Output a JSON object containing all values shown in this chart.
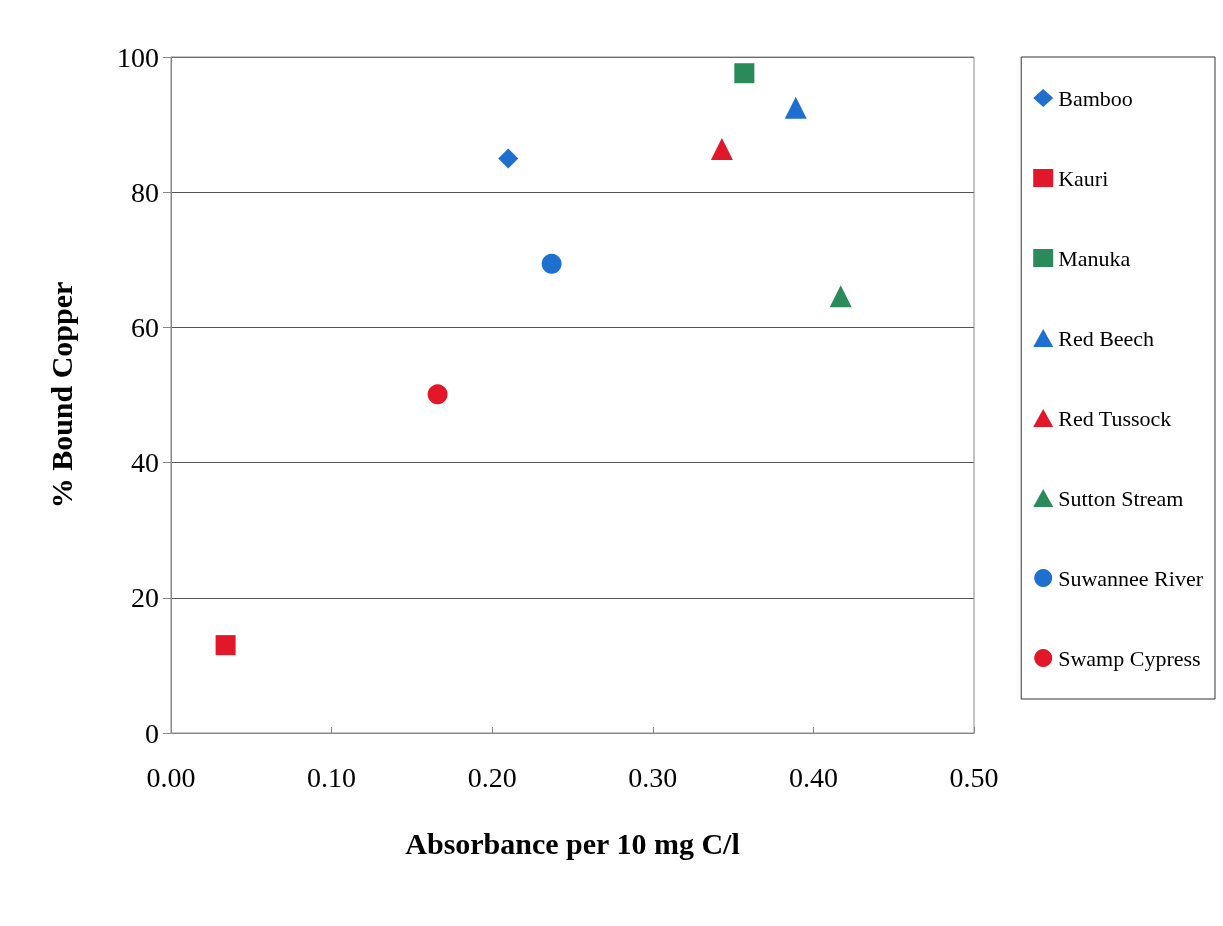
{
  "chart_data": {
    "type": "scatter",
    "xlabel": "Absorbance per 10 mg C/l",
    "ylabel": "% Bound Copper",
    "xlim": [
      0,
      0.5
    ],
    "xticks": [
      {
        "value": 0,
        "label": "0.00"
      },
      {
        "value": 0.1,
        "label": "0.10"
      },
      {
        "value": 0.2,
        "label": "0.20"
      },
      {
        "value": 0.3,
        "label": "0.30"
      },
      {
        "value": 0.4,
        "label": "0.40"
      },
      {
        "value": 0.5,
        "label": "0.50"
      }
    ],
    "ylim": [
      0,
      100
    ],
    "yticks": [
      0,
      20,
      40,
      60,
      80,
      100
    ],
    "grid": "y",
    "legend": "right",
    "series": [
      {
        "name": "Bamboo",
        "color": "#1e6fd0",
        "marker": "diamond",
        "x": [
          0.21
        ],
        "values": [
          85
        ]
      },
      {
        "name": "Kauri",
        "color": "#e3172a",
        "marker": "square",
        "x": [
          0.034
        ],
        "values": [
          13
        ]
      },
      {
        "name": "Manuka",
        "color": "#2a8a5a",
        "marker": "square",
        "x": [
          0.357
        ],
        "values": [
          97.6
        ]
      },
      {
        "name": "Red Beech",
        "color": "#1e6fd0",
        "marker": "triangle",
        "x": [
          0.389
        ],
        "values": [
          92.5
        ]
      },
      {
        "name": "Red Tussock",
        "color": "#e3172a",
        "marker": "triangle",
        "x": [
          0.343
        ],
        "values": [
          86.4
        ]
      },
      {
        "name": "Sutton Stream",
        "color": "#2a8a5a",
        "marker": "triangle",
        "x": [
          0.417
        ],
        "values": [
          64.6
        ]
      },
      {
        "name": "Suwannee River",
        "color": "#1e6fd0",
        "marker": "circle",
        "x": [
          0.237
        ],
        "values": [
          69.4
        ]
      },
      {
        "name": "Swamp Cypress",
        "color": "#e3172a",
        "marker": "circle",
        "x": [
          0.166
        ],
        "values": [
          50.1
        ]
      }
    ]
  }
}
